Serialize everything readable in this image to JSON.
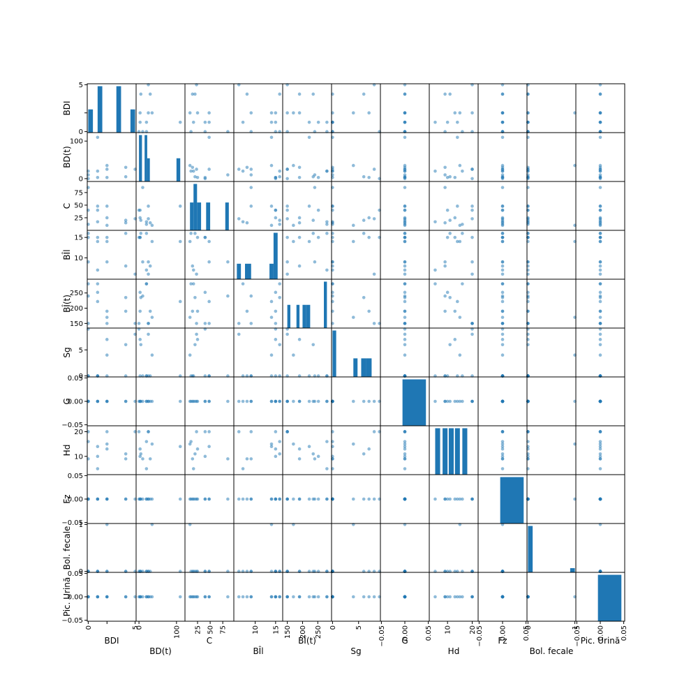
{
  "chart_data": {
    "type": "scatter_matrix",
    "variables": [
      "BDI",
      "BD(t)",
      "C",
      "BÎl",
      "BÎ(t)",
      "Sg",
      "G",
      "Hd",
      "Fz",
      "Bol. fecale",
      "Pic. Urină"
    ],
    "ranges": [
      [
        0,
        5
      ],
      [
        -5,
        120
      ],
      [
        2,
        95
      ],
      [
        5,
        16.5
      ],
      [
        138,
        292
      ],
      [
        0,
        9
      ],
      [
        -0.05,
        0.05
      ],
      [
        3,
        22
      ],
      [
        -0.05,
        0.05
      ],
      [
        0,
        1
      ],
      [
        -0.05,
        0.05
      ]
    ],
    "ticks": [
      [
        0,
        2,
        5
      ],
      [
        0,
        100
      ],
      [
        25,
        50,
        75
      ],
      [
        10,
        15
      ],
      [
        150,
        200,
        250
      ],
      [
        0,
        5
      ],
      [
        -0.05,
        0.0,
        0.05
      ],
      [
        10,
        20
      ],
      [
        -0.05,
        0.0,
        0.05
      ],
      [
        0,
        1
      ],
      [
        -0.05,
        0.0,
        0.05
      ]
    ],
    "y_tick_labels": [
      [
        "0",
        "",
        "5"
      ],
      [
        "0",
        "100"
      ],
      [
        "25",
        "50",
        "75"
      ],
      [
        "10",
        "15"
      ],
      [
        "150",
        "200",
        "250"
      ],
      [
        "0",
        "5"
      ],
      [
        "−0.05",
        "0.00",
        "0.05"
      ],
      [
        "10",
        "20"
      ],
      [
        "−0.05",
        "0.00",
        "0.05"
      ],
      [
        "0",
        "1"
      ],
      [
        "−0.05",
        "0.00",
        "0.05"
      ]
    ],
    "x_tick_labels": [
      [
        "0",
        "",
        "5"
      ],
      [
        "0",
        "100"
      ],
      [
        "25",
        "50",
        "75"
      ],
      [
        "10",
        "15"
      ],
      [
        "150",
        "200",
        "250"
      ],
      [
        "0",
        "5"
      ],
      [
        "−0.05",
        "0.00",
        "0.05"
      ],
      [
        "10",
        "20"
      ],
      [
        "−0.05",
        "0.00",
        "0.05"
      ],
      [
        "0",
        "1"
      ],
      [
        "−0.05",
        "0.00",
        "0.05"
      ]
    ],
    "observations": [
      [
        2,
        3,
        25,
        15,
        190,
        7,
        0,
        13,
        0,
        0,
        0
      ],
      [
        1,
        20,
        17,
        7,
        280,
        0,
        0,
        5,
        0,
        0,
        0
      ],
      [
        5,
        25,
        23,
        6,
        150,
        8,
        0,
        20,
        0,
        0,
        0
      ],
      [
        0,
        20,
        12,
        16,
        280,
        0,
        0,
        16,
        0,
        0,
        0
      ],
      [
        0,
        10,
        85,
        9,
        240,
        0,
        0,
        9,
        0,
        0,
        0
      ],
      [
        1,
        110,
        48,
        14,
        222,
        0,
        0,
        14,
        0,
        0,
        0
      ],
      [
        4,
        5,
        20,
        16,
        235,
        6,
        0,
        11,
        0,
        0,
        0
      ],
      [
        2,
        25,
        48,
        9,
        150,
        0,
        0,
        20,
        0,
        0,
        0
      ],
      [
        2,
        35,
        10,
        14,
        170,
        4,
        0,
        15,
        0,
        1,
        0
      ],
      [
        0,
        0,
        40,
        15,
        150,
        9,
        0,
        20,
        0,
        0,
        0
      ],
      [
        1,
        3,
        40,
        15,
        252,
        0,
        0,
        10,
        0,
        0,
        0
      ],
      [
        4,
        30,
        15,
        8,
        190,
        0,
        0,
        9,
        0,
        0,
        0
      ]
    ],
    "diagonal": "histogram",
    "histograms": [
      {
        "bins": [
          [
            0.0,
            0.5
          ],
          [
            1.0,
            1.5
          ],
          [
            3.0,
            3.5
          ],
          [
            4.5,
            5.0
          ]
        ],
        "counts": [
          2,
          4,
          4,
          2
        ]
      },
      {
        "bins": [
          [
            0,
            8
          ],
          [
            15,
            22
          ],
          [
            22,
            29
          ],
          [
            100,
            110
          ]
        ],
        "counts": [
          4,
          4,
          2,
          2
        ]
      },
      {
        "bins": [
          [
            10,
            17
          ],
          [
            17,
            24
          ],
          [
            24,
            32
          ],
          [
            42,
            50
          ],
          [
            80,
            87
          ]
        ],
        "counts": [
          3,
          5,
          3,
          3,
          3
        ]
      },
      {
        "bins": [
          [
            5.5,
            6.5
          ],
          [
            7.5,
            9.0
          ],
          [
            13.5,
            14.5
          ],
          [
            14.5,
            15.5
          ]
        ],
        "counts": [
          1,
          1,
          1,
          3
        ]
      },
      {
        "bins": [
          [
            150,
            160
          ],
          [
            180,
            190
          ],
          [
            200,
            212
          ],
          [
            212,
            225
          ],
          [
            270,
            280
          ]
        ],
        "counts": [
          1,
          1,
          1,
          1,
          2
        ]
      },
      {
        "bins": [
          [
            0.0,
            0.7
          ],
          [
            4.0,
            4.8
          ],
          [
            5.5,
            6.5
          ],
          [
            6.5,
            7.5
          ]
        ],
        "counts": [
          5,
          2,
          2,
          2
        ]
      },
      {
        "bins": [
          [
            -0.005,
            0.045
          ]
        ],
        "counts": [
          12
        ]
      },
      {
        "bins": [
          [
            5,
            7
          ],
          [
            8,
            10
          ],
          [
            10.5,
            12.5
          ],
          [
            13,
            15
          ],
          [
            16,
            18
          ]
        ],
        "counts": [
          2,
          2,
          2,
          2,
          2
        ]
      },
      {
        "bins": [
          [
            -0.005,
            0.045
          ]
        ],
        "counts": [
          12
        ]
      },
      {
        "bins": [
          [
            0.0,
            0.1
          ],
          [
            0.9,
            1.0
          ]
        ],
        "counts": [
          11,
          1
        ]
      },
      {
        "bins": [
          [
            -0.005,
            0.045
          ]
        ],
        "counts": [
          12
        ]
      }
    ],
    "point_color": "#1f77b4",
    "bar_color": "#1f77b4",
    "grid": false,
    "legend": "none"
  }
}
